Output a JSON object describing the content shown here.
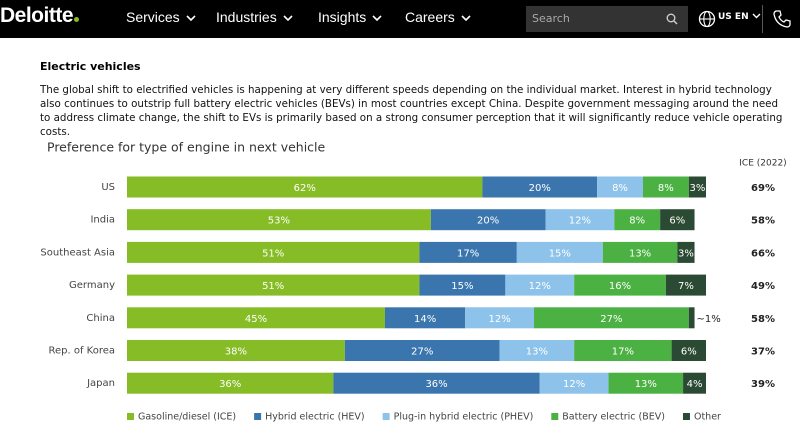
{
  "nav": {
    "logo": "Deloitte",
    "items": [
      "Services",
      "Industries",
      "Insights",
      "Careers"
    ],
    "search_placeholder": "Search",
    "locale": "US EN"
  },
  "article": {
    "heading": "Electric vehicles",
    "paragraph": "The global shift to electrified vehicles is happening at very different speeds depending on the individual market. Interest in hybrid technology also continues to outstrip full battery electric vehicles (BEVs) in most countries except China. Despite government messaging around the need to address climate change, the shift to EVs is primarily based on a strong consumer perception that it will significantly reduce vehicle operating costs."
  },
  "chart_data": {
    "type": "stacked-bar-horizontal",
    "title": "Preference for type of engine in next vehicle",
    "categories": [
      "US",
      "India",
      "Southeast Asia",
      "Germany",
      "China",
      "Rep. of Korea",
      "Japan"
    ],
    "series": [
      {
        "name": "Gasoline/diesel (ICE)",
        "color": "#86bc25",
        "values": [
          62,
          53,
          51,
          51,
          45,
          38,
          36
        ],
        "value_labels": [
          "62%",
          "53%",
          "51%",
          "51%",
          "45%",
          "38%",
          "36%"
        ]
      },
      {
        "name": "Hybrid electric (HEV)",
        "color": "#3a76ad",
        "values": [
          20,
          20,
          17,
          15,
          14,
          27,
          36
        ],
        "value_labels": [
          "20%",
          "20%",
          "17%",
          "15%",
          "14%",
          "27%",
          "36%"
        ]
      },
      {
        "name": "Plug-in hybrid electric (PHEV)",
        "color": "#8dc2ea",
        "values": [
          8,
          12,
          15,
          12,
          12,
          13,
          12
        ],
        "value_labels": [
          "8%",
          "12%",
          "15%",
          "12%",
          "12%",
          "13%",
          "12%"
        ]
      },
      {
        "name": "Battery electric (BEV)",
        "color": "#4cb143",
        "values": [
          8,
          8,
          13,
          16,
          27,
          17,
          13
        ],
        "value_labels": [
          "8%",
          "8%",
          "13%",
          "16%",
          "27%",
          "17%",
          "13%"
        ]
      },
      {
        "name": "Other",
        "color": "#2b4a33",
        "values": [
          3,
          6,
          3,
          7,
          1,
          6,
          4
        ],
        "value_labels": [
          "3%",
          "6%",
          "3%",
          "7%",
          "~1%",
          "6%",
          "4%"
        ]
      }
    ],
    "ice_2022": {
      "name": "ICE (2022)",
      "values": [
        69,
        58,
        66,
        49,
        58,
        37,
        39
      ],
      "value_labels": [
        "69%",
        "58%",
        "66%",
        "49%",
        "58%",
        "37%",
        "39%"
      ]
    }
  }
}
